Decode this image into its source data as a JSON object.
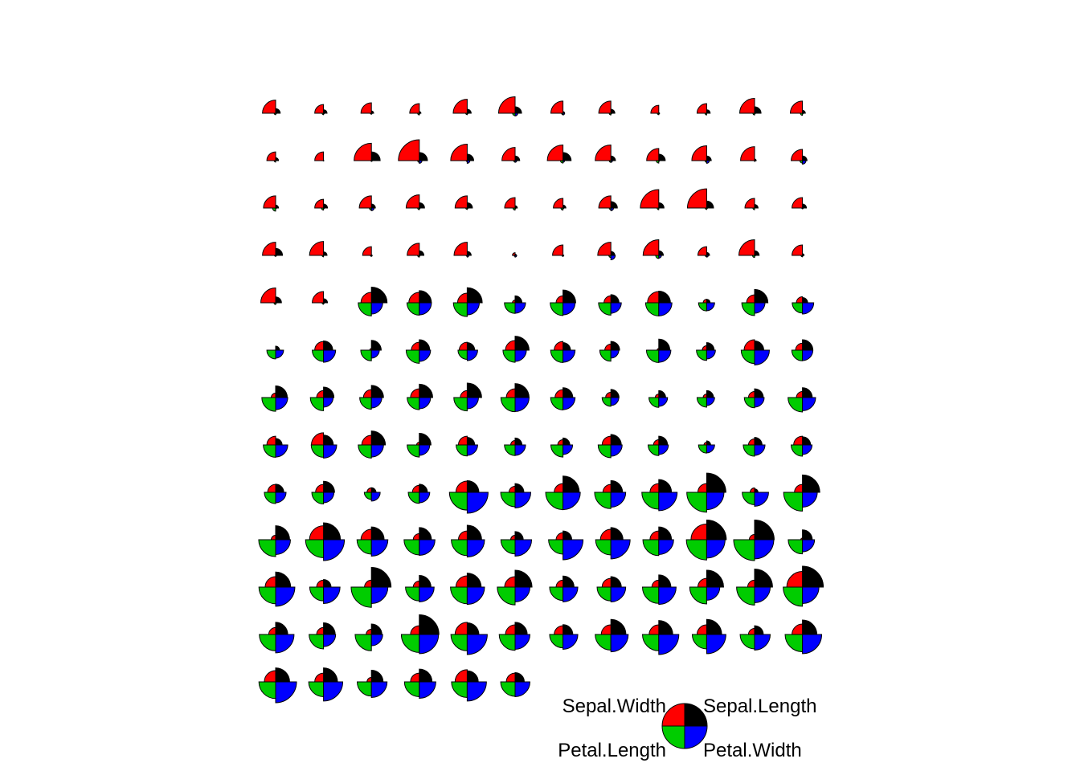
{
  "chart_data": {
    "type": "segment-star",
    "title": "",
    "grid": false,
    "legend_position": "bottom-right",
    "variables": [
      "Sepal.Length",
      "Sepal.Width",
      "Petal.Length",
      "Petal.Width"
    ],
    "variable_colors": [
      "#000000",
      "#ff0000",
      "#00cc00",
      "#0000ff"
    ],
    "n_cols": 12,
    "legend_labels": {
      "top_left": "Sepal.Width",
      "top_right": "Sepal.Length",
      "bottom_left": "Petal.Length",
      "bottom_right": "Petal.Width"
    },
    "observations": [
      [
        0.22,
        0.63,
        0.07,
        0.04
      ],
      [
        0.17,
        0.42,
        0.07,
        0.04
      ],
      [
        0.11,
        0.5,
        0.05,
        0.04
      ],
      [
        0.08,
        0.46,
        0.08,
        0.04
      ],
      [
        0.19,
        0.67,
        0.07,
        0.04
      ],
      [
        0.31,
        0.79,
        0.12,
        0.13
      ],
      [
        0.08,
        0.58,
        0.07,
        0.08
      ],
      [
        0.19,
        0.58,
        0.08,
        0.04
      ],
      [
        0.03,
        0.38,
        0.07,
        0.04
      ],
      [
        0.17,
        0.46,
        0.08,
        0.0
      ],
      [
        0.31,
        0.71,
        0.08,
        0.04
      ],
      [
        0.14,
        0.58,
        0.1,
        0.04
      ],
      [
        0.14,
        0.42,
        0.07,
        0.0
      ],
      [
        0.0,
        0.42,
        0.02,
        0.0
      ],
      [
        0.42,
        0.83,
        0.03,
        0.04
      ],
      [
        0.39,
        1.0,
        0.08,
        0.13
      ],
      [
        0.31,
        0.79,
        0.05,
        0.13
      ],
      [
        0.22,
        0.63,
        0.07,
        0.08
      ],
      [
        0.39,
        0.75,
        0.12,
        0.08
      ],
      [
        0.22,
        0.75,
        0.08,
        0.08
      ],
      [
        0.31,
        0.58,
        0.12,
        0.04
      ],
      [
        0.22,
        0.71,
        0.08,
        0.13
      ],
      [
        0.08,
        0.67,
        0.0,
        0.04
      ],
      [
        0.22,
        0.54,
        0.12,
        0.17
      ],
      [
        0.14,
        0.58,
        0.15,
        0.04
      ],
      [
        0.19,
        0.42,
        0.1,
        0.04
      ],
      [
        0.19,
        0.58,
        0.1,
        0.13
      ],
      [
        0.25,
        0.63,
        0.08,
        0.04
      ],
      [
        0.25,
        0.58,
        0.07,
        0.04
      ],
      [
        0.11,
        0.5,
        0.1,
        0.04
      ],
      [
        0.14,
        0.46,
        0.1,
        0.04
      ],
      [
        0.31,
        0.58,
        0.08,
        0.13
      ],
      [
        0.25,
        0.88,
        0.08,
        0.0
      ],
      [
        0.33,
        0.92,
        0.07,
        0.04
      ],
      [
        0.17,
        0.46,
        0.08,
        0.0
      ],
      [
        0.19,
        0.5,
        0.03,
        0.04
      ],
      [
        0.33,
        0.63,
        0.05,
        0.04
      ],
      [
        0.17,
        0.67,
        0.07,
        0.0
      ],
      [
        0.03,
        0.42,
        0.05,
        0.04
      ],
      [
        0.22,
        0.58,
        0.08,
        0.04
      ],
      [
        0.19,
        0.63,
        0.05,
        0.08
      ],
      [
        0.06,
        0.13,
        0.05,
        0.08
      ],
      [
        0.03,
        0.5,
        0.05,
        0.04
      ],
      [
        0.19,
        0.63,
        0.1,
        0.21
      ],
      [
        0.22,
        0.75,
        0.15,
        0.13
      ],
      [
        0.14,
        0.42,
        0.07,
        0.08
      ],
      [
        0.22,
        0.75,
        0.1,
        0.04
      ],
      [
        0.08,
        0.5,
        0.07,
        0.04
      ],
      [
        0.28,
        0.71,
        0.08,
        0.04
      ],
      [
        0.19,
        0.54,
        0.07,
        0.04
      ],
      [
        0.75,
        0.5,
        0.63,
        0.54
      ],
      [
        0.58,
        0.5,
        0.59,
        0.58
      ],
      [
        0.72,
        0.46,
        0.66,
        0.58
      ],
      [
        0.33,
        0.13,
        0.51,
        0.5
      ],
      [
        0.61,
        0.33,
        0.61,
        0.58
      ],
      [
        0.39,
        0.33,
        0.59,
        0.5
      ],
      [
        0.56,
        0.54,
        0.63,
        0.63
      ],
      [
        0.17,
        0.17,
        0.39,
        0.38
      ],
      [
        0.64,
        0.38,
        0.61,
        0.5
      ],
      [
        0.25,
        0.29,
        0.49,
        0.54
      ],
      [
        0.19,
        0.0,
        0.42,
        0.38
      ],
      [
        0.44,
        0.42,
        0.54,
        0.58
      ],
      [
        0.47,
        0.08,
        0.51,
        0.38
      ],
      [
        0.5,
        0.38,
        0.63,
        0.54
      ],
      [
        0.36,
        0.38,
        0.44,
        0.5
      ],
      [
        0.67,
        0.46,
        0.58,
        0.54
      ],
      [
        0.36,
        0.42,
        0.59,
        0.58
      ],
      [
        0.42,
        0.29,
        0.53,
        0.38
      ],
      [
        0.53,
        0.08,
        0.59,
        0.58
      ],
      [
        0.36,
        0.21,
        0.49,
        0.42
      ],
      [
        0.44,
        0.5,
        0.64,
        0.71
      ],
      [
        0.5,
        0.33,
        0.51,
        0.5
      ],
      [
        0.56,
        0.21,
        0.66,
        0.58
      ],
      [
        0.5,
        0.33,
        0.63,
        0.46
      ],
      [
        0.58,
        0.38,
        0.56,
        0.5
      ],
      [
        0.64,
        0.42,
        0.58,
        0.54
      ],
      [
        0.69,
        0.33,
        0.64,
        0.54
      ],
      [
        0.67,
        0.42,
        0.68,
        0.67
      ],
      [
        0.47,
        0.38,
        0.59,
        0.58
      ],
      [
        0.39,
        0.25,
        0.42,
        0.38
      ],
      [
        0.33,
        0.17,
        0.47,
        0.42
      ],
      [
        0.33,
        0.17,
        0.46,
        0.38
      ],
      [
        0.42,
        0.29,
        0.49,
        0.46
      ],
      [
        0.47,
        0.29,
        0.69,
        0.63
      ],
      [
        0.31,
        0.42,
        0.59,
        0.58
      ],
      [
        0.47,
        0.58,
        0.59,
        0.63
      ],
      [
        0.67,
        0.46,
        0.63,
        0.58
      ],
      [
        0.56,
        0.13,
        0.58,
        0.5
      ],
      [
        0.36,
        0.42,
        0.53,
        0.5
      ],
      [
        0.33,
        0.21,
        0.51,
        0.5
      ],
      [
        0.33,
        0.25,
        0.58,
        0.46
      ],
      [
        0.5,
        0.42,
        0.61,
        0.54
      ],
      [
        0.42,
        0.25,
        0.51,
        0.46
      ],
      [
        0.19,
        0.13,
        0.39,
        0.38
      ],
      [
        0.36,
        0.29,
        0.54,
        0.5
      ],
      [
        0.39,
        0.42,
        0.54,
        0.46
      ],
      [
        0.39,
        0.38,
        0.54,
        0.5
      ],
      [
        0.53,
        0.38,
        0.56,
        0.5
      ],
      [
        0.22,
        0.21,
        0.34,
        0.42
      ],
      [
        0.39,
        0.33,
        0.53,
        0.5
      ],
      [
        0.56,
        0.54,
        0.85,
        1.0
      ],
      [
        0.42,
        0.29,
        0.69,
        0.75
      ],
      [
        0.78,
        0.42,
        0.83,
        0.83
      ],
      [
        0.56,
        0.38,
        0.78,
        0.71
      ],
      [
        0.61,
        0.42,
        0.81,
        0.88
      ],
      [
        0.92,
        0.42,
        0.95,
        0.83
      ],
      [
        0.17,
        0.21,
        0.59,
        0.67
      ],
      [
        0.83,
        0.38,
        0.9,
        0.71
      ],
      [
        0.67,
        0.21,
        0.81,
        0.71
      ],
      [
        0.81,
        0.67,
        0.86,
        1.0
      ],
      [
        0.61,
        0.5,
        0.69,
        0.79
      ],
      [
        0.58,
        0.29,
        0.73,
        0.75
      ],
      [
        0.69,
        0.42,
        0.76,
        0.83
      ],
      [
        0.39,
        0.21,
        0.68,
        0.79
      ],
      [
        0.42,
        0.33,
        0.69,
        0.96
      ],
      [
        0.58,
        0.5,
        0.73,
        0.92
      ],
      [
        0.61,
        0.42,
        0.76,
        0.71
      ],
      [
        0.94,
        0.75,
        0.97,
        0.88
      ],
      [
        0.94,
        0.25,
        1.0,
        0.92
      ],
      [
        0.47,
        0.08,
        0.68,
        0.58
      ],
      [
        0.72,
        0.5,
        0.8,
        0.92
      ],
      [
        0.36,
        0.33,
        0.66,
        0.79
      ],
      [
        0.94,
        0.33,
        0.97,
        0.79
      ],
      [
        0.56,
        0.29,
        0.66,
        0.71
      ],
      [
        0.67,
        0.54,
        0.8,
        0.83
      ],
      [
        0.81,
        0.5,
        0.85,
        0.71
      ],
      [
        0.53,
        0.33,
        0.64,
        0.71
      ],
      [
        0.5,
        0.42,
        0.66,
        0.71
      ],
      [
        0.58,
        0.33,
        0.78,
        0.83
      ],
      [
        0.81,
        0.42,
        0.81,
        0.63
      ],
      [
        0.86,
        0.33,
        0.86,
        0.75
      ],
      [
        1.0,
        0.75,
        0.92,
        0.79
      ],
      [
        0.58,
        0.33,
        0.78,
        0.88
      ],
      [
        0.56,
        0.33,
        0.69,
        0.58
      ],
      [
        0.5,
        0.25,
        0.78,
        0.54
      ],
      [
        0.94,
        0.42,
        0.86,
        0.92
      ],
      [
        0.56,
        0.58,
        0.78,
        0.96
      ],
      [
        0.58,
        0.46,
        0.76,
        0.71
      ],
      [
        0.47,
        0.42,
        0.64,
        0.71
      ],
      [
        0.72,
        0.46,
        0.75,
        0.83
      ],
      [
        0.67,
        0.46,
        0.78,
        0.96
      ],
      [
        0.72,
        0.46,
        0.69,
        0.92
      ],
      [
        0.42,
        0.29,
        0.69,
        0.75
      ],
      [
        0.69,
        0.5,
        0.83,
        0.92
      ],
      [
        0.67,
        0.54,
        0.8,
        1.0
      ],
      [
        0.67,
        0.42,
        0.71,
        0.92
      ],
      [
        0.56,
        0.21,
        0.68,
        0.75
      ],
      [
        0.61,
        0.42,
        0.71,
        0.79
      ],
      [
        0.53,
        0.58,
        0.75,
        0.92
      ],
      [
        0.44,
        0.42,
        0.69,
        0.71
      ]
    ]
  }
}
